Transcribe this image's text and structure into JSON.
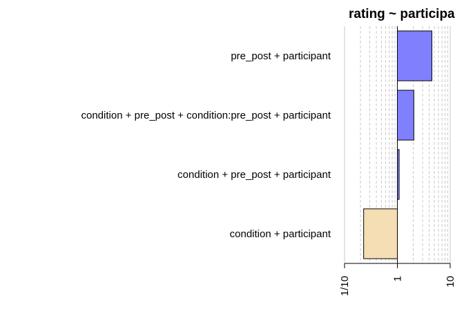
{
  "chart_data": {
    "type": "bar",
    "orientation": "horizontal",
    "title": "rating ~ participa",
    "x_scale": "log10",
    "xlim": [
      0.1,
      10
    ],
    "x_ticks": [
      {
        "value": 0.1,
        "label": "1/10"
      },
      {
        "value": 1,
        "label": "1"
      },
      {
        "value": 10,
        "label": "10"
      }
    ],
    "categories": [
      "pre_post + participant",
      "condition + pre_post + condition:pre_post + participant",
      "condition + pre_post + participant",
      "condition + participant"
    ],
    "values": [
      4.5,
      2.05,
      1.08,
      0.23
    ],
    "grid": "vertical dashed",
    "colors": {
      "bar_above_one": "#8080ff",
      "bar_below_one": "#f5deb3",
      "bar_border": "#000000",
      "grid": "#c8c8c8"
    }
  }
}
